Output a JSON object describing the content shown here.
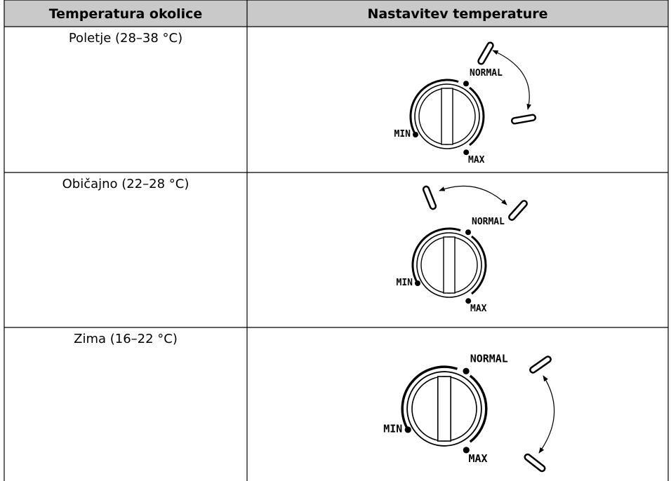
{
  "table": {
    "header": [
      "Temperatura okolice",
      "Nastavitev temperature"
    ],
    "rows": [
      {
        "ambient": "Poletje (28–38 °C)",
        "dial": {
          "min": "MIN",
          "normal": "NORMAL",
          "max": "MAX"
        }
      },
      {
        "ambient": "Običajno (22–28 °C)",
        "dial": {
          "min": "MIN",
          "normal": "NORMAL",
          "max": "MAX"
        }
      },
      {
        "ambient": "Zima (16–22 °C)",
        "dial": {
          "min": "MIN",
          "normal": "NORMAL",
          "max": "MAX"
        }
      }
    ]
  }
}
